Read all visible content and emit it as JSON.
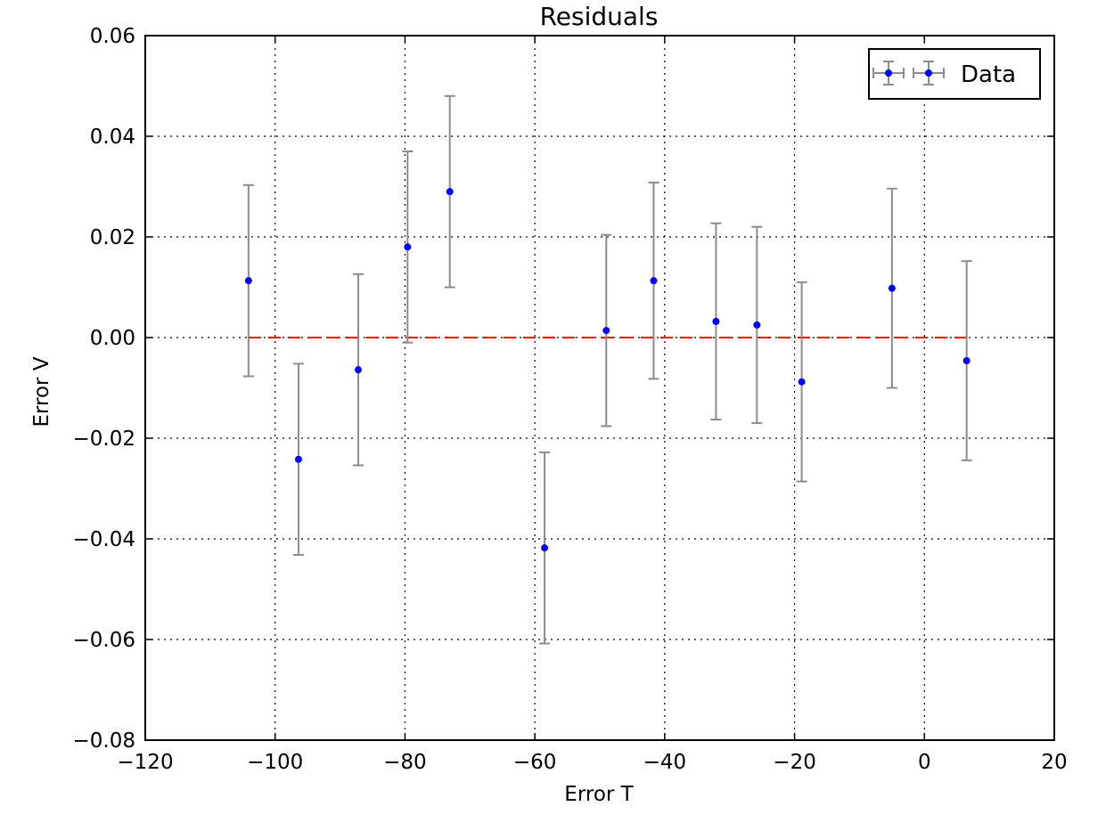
{
  "chart_data": {
    "type": "scatter",
    "title": "Residuals",
    "xlabel": "Error T",
    "ylabel": "Error V",
    "xlim": [
      -120,
      20
    ],
    "ylim": [
      -0.08,
      0.06
    ],
    "xticks": [
      -120,
      -100,
      -80,
      -60,
      -40,
      -20,
      0,
      20
    ],
    "xtick_labels": [
      "−120",
      "−100",
      "−80",
      "−60",
      "−40",
      "−20",
      "0",
      "20"
    ],
    "yticks": [
      -0.08,
      -0.06,
      -0.04,
      -0.02,
      0.0,
      0.02,
      0.04,
      0.06
    ],
    "ytick_labels": [
      "−0.08",
      "−0.06",
      "−0.04",
      "−0.02",
      "0.00",
      "0.02",
      "0.04",
      "0.06"
    ],
    "grid": true,
    "legend_position": "top-right",
    "series": [
      {
        "name": "Data",
        "color": "#0000ff",
        "errorbar_color": "#8c8c8c",
        "x": [
          -104.1,
          -96.4,
          -87.2,
          -79.6,
          -73.1,
          -58.5,
          -49.0,
          -41.7,
          -32.1,
          -25.8,
          -18.9,
          -5.0,
          6.5
        ],
        "y": [
          0.0113,
          -0.0242,
          -0.0064,
          0.018,
          0.029,
          -0.0418,
          0.0014,
          0.0113,
          0.0032,
          0.0025,
          -0.0088,
          0.0098,
          -0.0046
        ],
        "y_err": [
          0.019,
          0.019,
          0.019,
          0.019,
          0.019,
          0.019,
          0.019,
          0.0195,
          0.0195,
          0.0195,
          0.0198,
          0.0198,
          0.0198
        ]
      }
    ],
    "reference_line": {
      "y": 0.0,
      "x_start": -104.1,
      "x_end": 6.5,
      "color": "#ff0000",
      "style": "dashed"
    }
  }
}
